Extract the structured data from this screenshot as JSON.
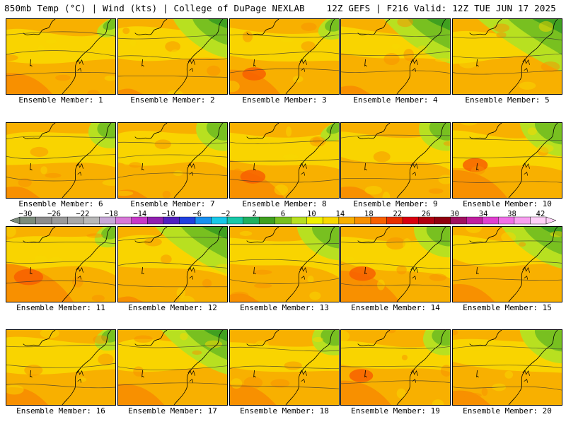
{
  "header": {
    "left": "850mb Temp (°C) | Wind (kts) | College of DuPage NEXLAB",
    "right": "12Z GEFS | F216 Valid: 12Z TUE JUN 17 2025"
  },
  "panel_label_prefix": "Ensemble Member: ",
  "members": [
    {
      "label": "Ensemble Member: 1",
      "green": 0.05,
      "hot": 0.3
    },
    {
      "label": "Ensemble Member: 2",
      "green": 0.45,
      "hot": 0.05
    },
    {
      "label": "Ensemble Member: 3",
      "green": 0.1,
      "hot": 0.35
    },
    {
      "label": "Ensemble Member: 4",
      "green": 0.55,
      "hot": 0.1
    },
    {
      "label": "Ensemble Member: 5",
      "green": 0.7,
      "hot": 0.0
    },
    {
      "label": "Ensemble Member: 6",
      "green": 0.2,
      "hot": 0.15
    },
    {
      "label": "Ensemble Member: 7",
      "green": 0.25,
      "hot": 0.1
    },
    {
      "label": "Ensemble Member: 8",
      "green": 0.05,
      "hot": 0.4
    },
    {
      "label": "Ensemble Member: 9",
      "green": 0.25,
      "hot": 0.15
    },
    {
      "label": "Ensemble Member: 10",
      "green": 0.35,
      "hot": 0.4
    },
    {
      "label": "Ensemble Member: 11",
      "green": 0.1,
      "hot": 0.55
    },
    {
      "label": "Ensemble Member: 12",
      "green": 0.6,
      "hot": 0.05
    },
    {
      "label": "Ensemble Member: 13",
      "green": 0.35,
      "hot": 0.1
    },
    {
      "label": "Ensemble Member: 14",
      "green": 0.3,
      "hot": 0.45
    },
    {
      "label": "Ensemble Member: 15",
      "green": 0.5,
      "hot": 0.25
    },
    {
      "label": "Ensemble Member: 16",
      "green": 0.1,
      "hot": 0.25
    },
    {
      "label": "Ensemble Member: 17",
      "green": 0.55,
      "hot": 0.3
    },
    {
      "label": "Ensemble Member: 18",
      "green": 0.2,
      "hot": 0.3
    },
    {
      "label": "Ensemble Member: 19",
      "green": 0.2,
      "hot": 0.35
    },
    {
      "label": "Ensemble Member: 20",
      "green": 0.35,
      "hot": 0.2
    }
  ],
  "colorbar": {
    "unit": "°C",
    "ticks": [
      "−30",
      "−26",
      "−22",
      "−18",
      "−14",
      "−10",
      "−6",
      "−2",
      "2",
      "6",
      "10",
      "14",
      "18",
      "22",
      "26",
      "30",
      "34",
      "38",
      "42"
    ],
    "colors": [
      "#7b8b7b",
      "#8c8c8c",
      "#9a9a9a",
      "#a8a8a8",
      "#b8b8b8",
      "#c8a8d8",
      "#d878d8",
      "#c838c8",
      "#9020b0",
      "#5020c0",
      "#2040e0",
      "#1890f0",
      "#18c8e8",
      "#18c8a8",
      "#20b060",
      "#40a020",
      "#78c020",
      "#b8e020",
      "#f0f000",
      "#f8d800",
      "#f8b000",
      "#f89000",
      "#f86000",
      "#e83000",
      "#d80010",
      "#b00010",
      "#900010",
      "#a01060",
      "#c020a0",
      "#e040d0",
      "#f070e8",
      "#f8a0f0",
      "#ffd0f8"
    ]
  },
  "colors": {
    "yellow": "#f8d800",
    "orange": "#f8b000",
    "dark_orange": "#f89000",
    "red_orange": "#f86000",
    "light_green": "#b8e020",
    "green": "#78c020",
    "dark_green": "#40a020"
  }
}
